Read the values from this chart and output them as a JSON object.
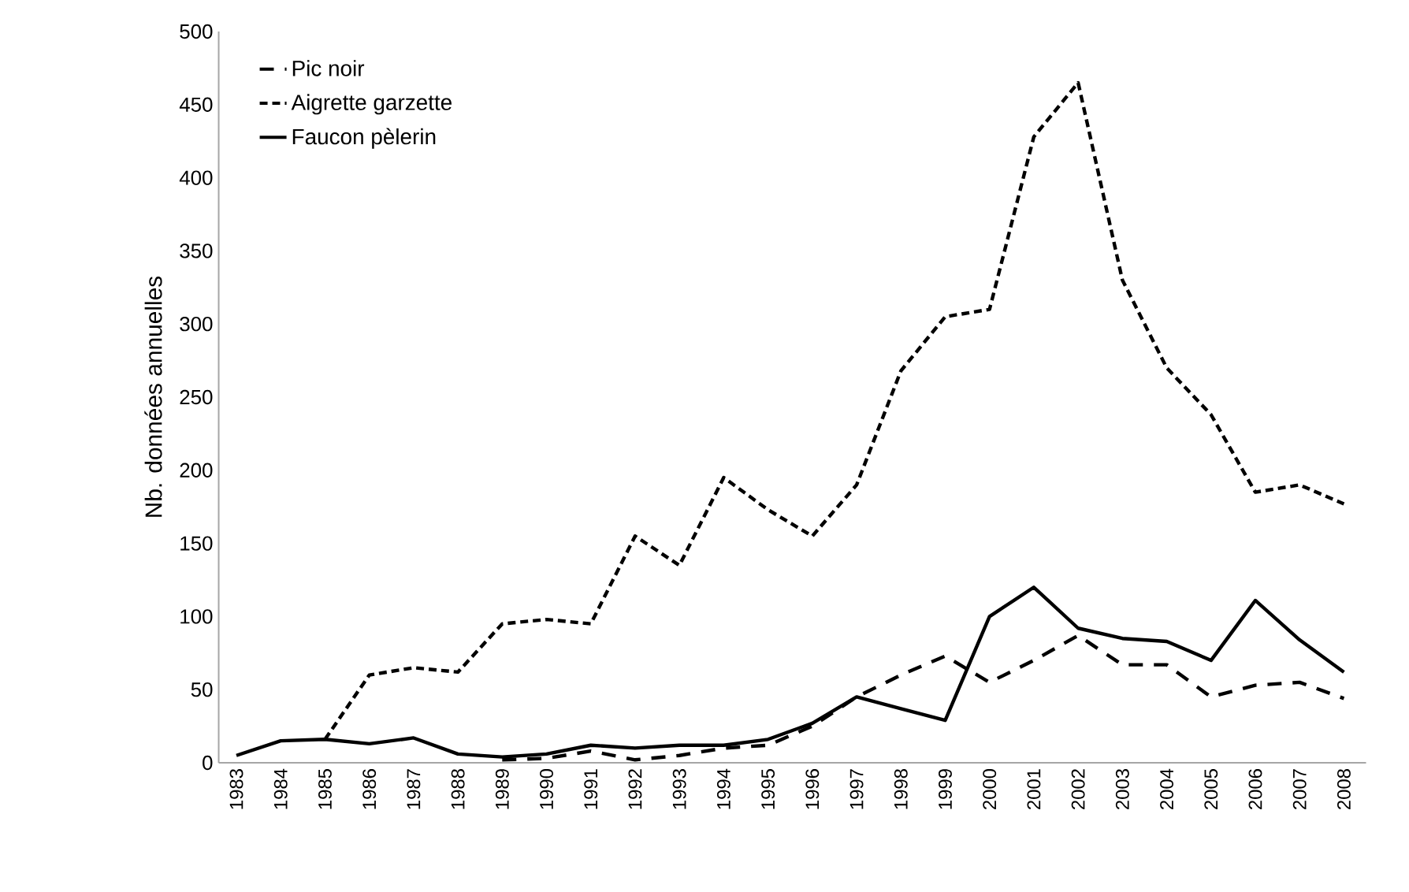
{
  "chart_data": {
    "type": "line",
    "ylabel": "Nb. données annuelles",
    "categories": [
      "1983",
      "1984",
      "1985",
      "1986",
      "1987",
      "1988",
      "1989",
      "1990",
      "1991",
      "1992",
      "1993",
      "1994",
      "1995",
      "1996",
      "1997",
      "1998",
      "1999",
      "2000",
      "2001",
      "2002",
      "2003",
      "2004",
      "2005",
      "2006",
      "2007",
      "2008"
    ],
    "series": [
      {
        "name": "Pic noir",
        "color": "#000000",
        "line_style": "dashed",
        "values": [
          null,
          null,
          null,
          null,
          null,
          null,
          2,
          3,
          8,
          2,
          5,
          10,
          12,
          25,
          45,
          60,
          73,
          55,
          70,
          87,
          67,
          67,
          45,
          53,
          55,
          44
        ]
      },
      {
        "name": "Aigrette garzette",
        "color": "#000000",
        "line_style": "dashed",
        "values": [
          null,
          null,
          16,
          60,
          65,
          62,
          95,
          98,
          95,
          155,
          135,
          195,
          173,
          155,
          190,
          268,
          305,
          310,
          428,
          465,
          330,
          270,
          238,
          185,
          190,
          177
        ]
      },
      {
        "name": "Faucon pèlerin",
        "color": "#000000",
        "line_style": "solid",
        "values": [
          5,
          15,
          16,
          13,
          17,
          6,
          4,
          6,
          12,
          10,
          12,
          12,
          16,
          27,
          45,
          37,
          29,
          100,
          120,
          92,
          85,
          83,
          70,
          111,
          84,
          62
        ]
      }
    ],
    "ylim": [
      0,
      500
    ],
    "yticks": [
      0,
      50,
      100,
      150,
      200,
      250,
      300,
      350,
      400,
      450,
      500
    ],
    "grid": false,
    "legend": "top left",
    "marker": "none"
  }
}
